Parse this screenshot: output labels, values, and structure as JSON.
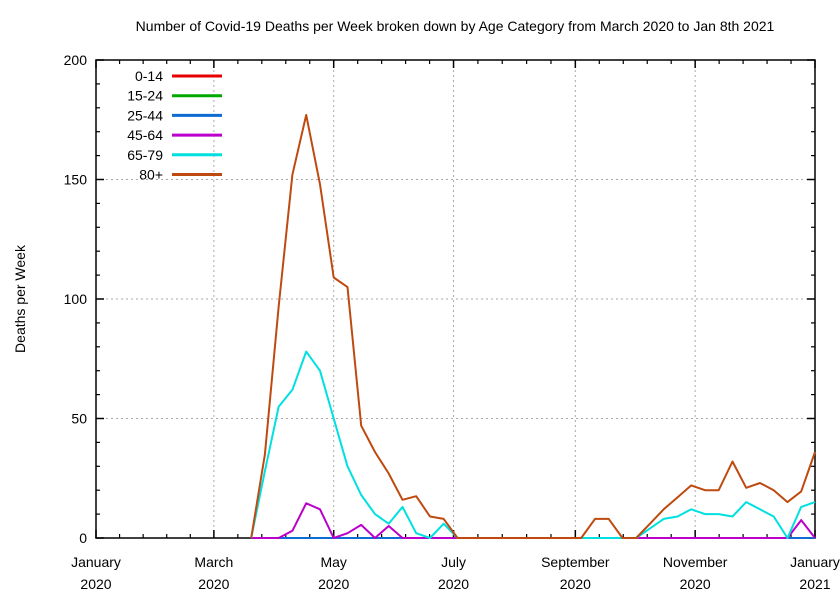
{
  "title": "Number of Covid-19 Deaths per Week broken down by Age Category from March 2020 to Jan 8th 2021",
  "chart_data": {
    "type": "line",
    "title": "Number of Covid-19 Deaths per Week broken down by Age Category from March 2020 to Jan 8th 2021",
    "ylabel": "Deaths per Week",
    "ylim": [
      0,
      200
    ],
    "yticks_major": [
      0,
      50,
      100,
      150,
      200
    ],
    "y_minor_step": 10,
    "x_domain_days": 366,
    "x_minor_per_interval": 4,
    "grid": "dashed-gray-at-major-ticks",
    "legend_position": "top-left-inside",
    "axis_color": "#000000",
    "grid_color": "#aaaaaa",
    "xticks": [
      {
        "day": 0,
        "month": "January",
        "year": "2020"
      },
      {
        "day": 60,
        "month": "March",
        "year": "2020"
      },
      {
        "day": 121,
        "month": "May",
        "year": "2020"
      },
      {
        "day": 182,
        "month": "July",
        "year": "2020"
      },
      {
        "day": 244,
        "month": "September",
        "year": "2020"
      },
      {
        "day": 305,
        "month": "November",
        "year": "2020"
      },
      {
        "day": 366,
        "month": "January",
        "year": "2021"
      }
    ],
    "series_start_date": "2020-03-20",
    "series_start_day": 79,
    "series_step_days": 7,
    "series": [
      {
        "name": "0-14",
        "color": "#e60000",
        "values": [
          0,
          0,
          0,
          0,
          0,
          0,
          0,
          0,
          0,
          0,
          0,
          0,
          0,
          0,
          0,
          0,
          0,
          0,
          0,
          0,
          0,
          0,
          0,
          0,
          0,
          0,
          0,
          0,
          0,
          0,
          0,
          0,
          0,
          0,
          0,
          0,
          0,
          0,
          0,
          0,
          0,
          0
        ]
      },
      {
        "name": "15-24",
        "color": "#00a800",
        "values": [
          0,
          0,
          0,
          0,
          0,
          0,
          0,
          0,
          0,
          0,
          0,
          0,
          0,
          0,
          0,
          0,
          0,
          0,
          0,
          0,
          0,
          0,
          0,
          0,
          0,
          0,
          0,
          0,
          0,
          0,
          0,
          0,
          0,
          0,
          0,
          0,
          0,
          0,
          0,
          0,
          0,
          0
        ]
      },
      {
        "name": "25-44",
        "color": "#0f6bd4",
        "values": [
          0,
          0,
          0,
          0,
          0,
          0,
          0,
          0,
          0,
          0,
          0,
          0,
          0,
          0,
          0,
          0,
          0,
          0,
          0,
          0,
          0,
          0,
          0,
          0,
          0,
          0,
          0,
          0,
          0,
          0,
          0,
          0,
          0,
          0,
          0,
          0,
          0,
          0,
          0,
          0,
          0,
          0
        ]
      },
      {
        "name": "45-64",
        "color": "#bb00cc",
        "values": [
          0,
          0,
          0,
          3,
          14.5,
          12,
          0,
          2,
          5.5,
          0,
          5,
          0,
          0,
          0,
          0,
          0,
          0,
          0,
          0,
          0,
          0,
          0,
          0,
          0,
          0,
          0,
          0,
          0,
          0,
          0,
          0,
          0,
          0,
          0,
          0,
          0,
          0,
          0,
          0,
          0,
          7.5,
          0
        ]
      },
      {
        "name": "65-79",
        "color": "#00e0e0",
        "values": [
          0,
          28,
          55,
          62,
          78,
          70,
          50,
          30,
          18,
          10,
          6,
          13,
          2,
          0,
          6,
          0,
          0,
          0,
          0,
          0,
          0,
          0,
          0,
          0,
          0,
          0,
          0,
          0,
          0,
          4,
          8,
          9,
          12,
          10,
          10,
          9,
          15,
          12,
          9,
          0,
          13,
          15
        ]
      },
      {
        "name": "80+",
        "color": "#bf4a10",
        "values": [
          0,
          35,
          97,
          152,
          177,
          148,
          109,
          105,
          47,
          36,
          27,
          16,
          17.5,
          9,
          8,
          0,
          0,
          0,
          0,
          0,
          0,
          0,
          0,
          0,
          0,
          8,
          8,
          0,
          0,
          6,
          12,
          17,
          22,
          20,
          20,
          32,
          21,
          23,
          20,
          15,
          19.5,
          36
        ]
      }
    ]
  }
}
